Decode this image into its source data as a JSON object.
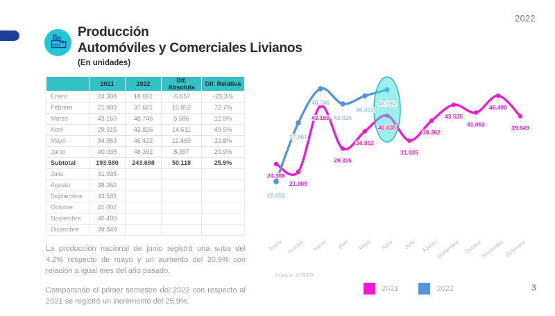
{
  "page": {
    "year_badge": "2022",
    "page_number": "3",
    "source": "Fuente: ADEFA"
  },
  "header": {
    "title_line1": "Producción",
    "title_line2": "Automóviles y Comerciales Livianos",
    "subtitle": "(En unidades)"
  },
  "table": {
    "headers": [
      "",
      "2021",
      "2022",
      "Dif. Absoluta",
      "Dif. Relativa"
    ],
    "rows": [
      [
        "Enero",
        "24.308",
        "18.651",
        "-5.657",
        "-23.3%",
        false
      ],
      [
        "Febrero",
        "21.809",
        "37.661",
        "15.852",
        "72.7%",
        false
      ],
      [
        "Marzo",
        "43.160",
        "48.746",
        "5.586",
        "12.9%",
        false
      ],
      [
        "Abril",
        "29.315",
        "43.826",
        "14.511",
        "49.5%",
        false
      ],
      [
        "Mayo",
        "34.953",
        "46.422",
        "11.469",
        "32.8%",
        false
      ],
      [
        "Junio",
        "40.035",
        "48.392",
        "8.357",
        "20.9%",
        false
      ],
      [
        "Subtotal",
        "193.580",
        "243.698",
        "50.118",
        "25.9%",
        true
      ],
      [
        "Julio",
        "31.935",
        "",
        "",
        "",
        false
      ],
      [
        "Agosto",
        "38.362",
        "",
        "",
        "",
        false
      ],
      [
        "Septiembre",
        "43.535",
        "",
        "",
        "",
        false
      ],
      [
        "Octubre",
        "41.002",
        "",
        "",
        "",
        false
      ],
      [
        "Noviembre",
        "46.490",
        "",
        "",
        "",
        false
      ],
      [
        "Diciembre",
        "39.849",
        "",
        "",
        "",
        false
      ]
    ]
  },
  "notes": {
    "paragraph1": "La producción nacional de junio registró una suba del 4.2% respecto de mayo y un aumento del 20.9% con relación a igual mes del año pasado.",
    "paragraph2": "Comparando el primer semestre del 2022 con respecto al 2021 se registró un incremento del 25.9%."
  },
  "chart_data": {
    "type": "line",
    "title": "Producción Automóviles y Comerciales Livianos (En unidades)",
    "x": [
      "Enero",
      "Febrero",
      "Marzo",
      "Abril",
      "Mayo",
      "Junio",
      "Julio",
      "Agosto",
      "Septiembre",
      "Octubre",
      "Noviembre",
      "Diciembre"
    ],
    "series": [
      {
        "name": "2021",
        "color": "#f316d5",
        "label_color": "#f316d5",
        "values": [
          24308,
          21809,
          43160,
          29315,
          34953,
          40035,
          31935,
          38362,
          43535,
          41002,
          46490,
          39849
        ],
        "labels": [
          "24.308",
          "21.809",
          "43.160",
          "29.315",
          "34.953",
          "40.035",
          "31.935",
          "38.362",
          "43.535",
          "41.002",
          "46.490",
          "39.849"
        ]
      },
      {
        "name": "2022",
        "color": "#5494dc",
        "label_color": "#9dc3e6",
        "values": [
          18651,
          37661,
          48746,
          43826,
          46422,
          48392
        ],
        "labels": [
          "18.651",
          "37.661",
          "48.746",
          "43.826",
          "46.422",
          "48.392"
        ]
      }
    ],
    "highlight": {
      "month": "Junio",
      "index": 5,
      "fill": "#3eddd8",
      "stroke": "#2cb9b9"
    },
    "legend": [
      {
        "label": "2021",
        "color": "#f316d5"
      },
      {
        "label": "2022",
        "color": "#5494dc"
      }
    ],
    "legend_position": "bottom",
    "axes": {
      "y_axis_visible": false,
      "x_axis_visible": false,
      "grid": false
    },
    "value_range": [
      18651,
      48746
    ]
  },
  "colors": {
    "table_header_bg": "#32c2c6",
    "icon_circle": "#21c7d6",
    "accent_pill": "#1d3f99",
    "month_label": "#b9bec6"
  }
}
